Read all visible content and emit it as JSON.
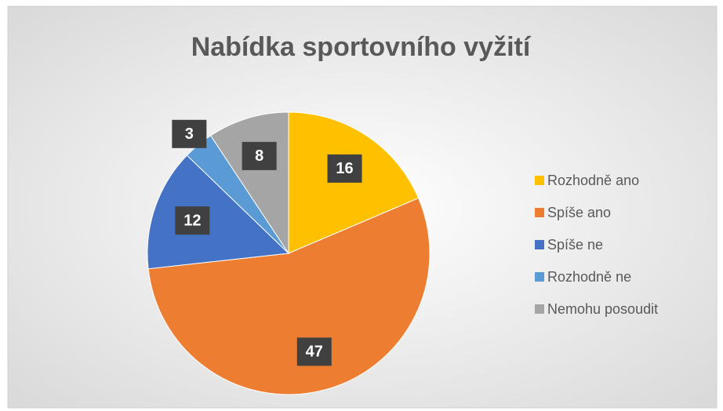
{
  "chart_data": {
    "type": "pie",
    "title": "Nabídka sportovního vyžití",
    "categories": [
      "Rozhodně ano",
      "Spíše ano",
      "Spíše ne",
      "Rozhodně ne",
      "Nemohu posoudit"
    ],
    "values": [
      16,
      47,
      12,
      3,
      8
    ],
    "colors": [
      "#ffc000",
      "#ed7d31",
      "#4472c4",
      "#5b9bd5",
      "#a5a5a5"
    ],
    "legend": "right"
  }
}
